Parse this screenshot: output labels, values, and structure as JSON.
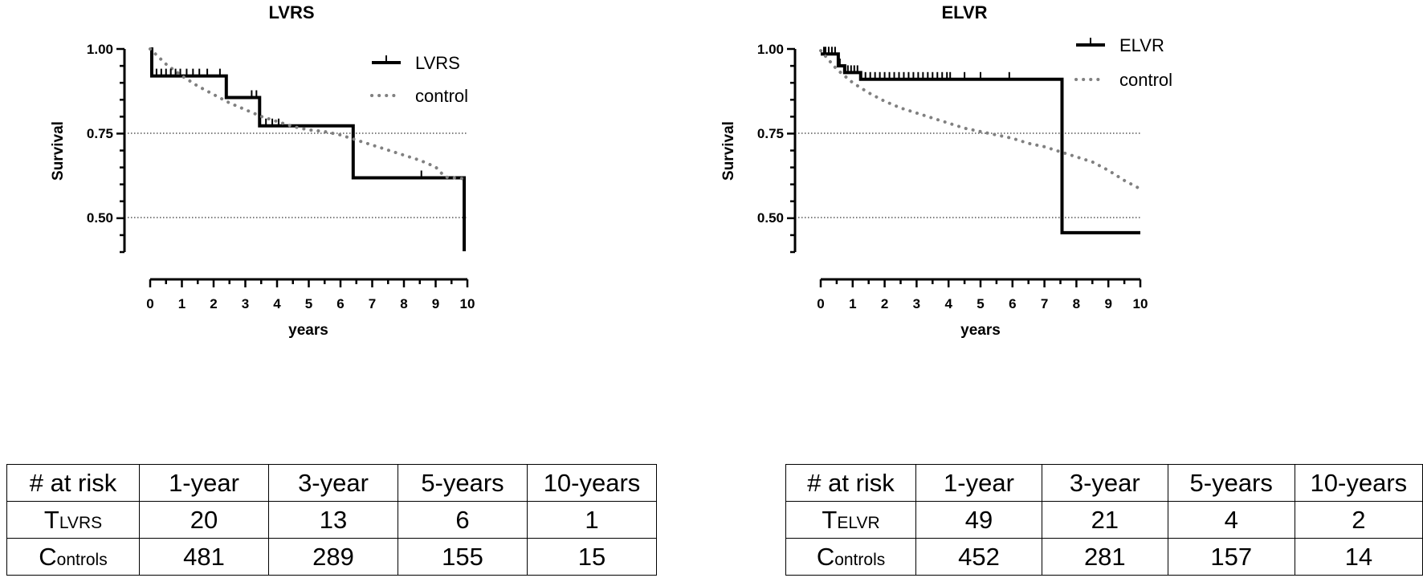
{
  "chart_data": [
    {
      "type": "line",
      "title": "LVRS",
      "xlabel": "years",
      "ylabel": "Survival",
      "xlim": [
        0,
        10
      ],
      "ylim": [
        0.4,
        1.0
      ],
      "xticks": [
        "0",
        "1",
        "2",
        "3",
        "4",
        "5",
        "6",
        "7",
        "8",
        "9",
        "10"
      ],
      "yticks": [
        {
          "value": 1.0,
          "label": "1.00"
        },
        {
          "value": 0.75,
          "label": "0.75"
        },
        {
          "value": 0.5,
          "label": "0.50"
        }
      ],
      "reference_lines": [
        0.75,
        0.5
      ],
      "legend_position": "top-right",
      "series": [
        {
          "name": "LVRS",
          "style": "solid-step",
          "x": [
            0,
            0.05,
            2.4,
            3.45,
            6.4,
            9.9,
            9.9
          ],
          "y": [
            1.0,
            0.92,
            0.856,
            0.772,
            0.618,
            0.618,
            0.4
          ]
        },
        {
          "name": "control",
          "style": "dotted",
          "x": [
            0,
            0.5,
            1,
            1.5,
            2,
            2.5,
            3,
            3.5,
            4,
            4.5,
            5,
            5.5,
            6,
            6.5,
            7,
            7.5,
            8,
            8.5,
            9,
            9.3,
            9.9
          ],
          "y": [
            1.0,
            0.955,
            0.92,
            0.89,
            0.865,
            0.84,
            0.82,
            0.8,
            0.785,
            0.77,
            0.76,
            0.755,
            0.745,
            0.73,
            0.715,
            0.7,
            0.685,
            0.67,
            0.65,
            0.62,
            0.615
          ]
        }
      ],
      "censor_ticks": [
        {
          "series": "LVRS",
          "x": [
            0.2,
            0.35,
            0.5,
            0.65,
            0.8,
            0.95,
            1.15,
            1.35,
            1.55,
            1.8,
            2.2,
            3.2,
            3.35,
            3.65,
            3.85,
            4.05,
            8.55
          ]
        }
      ]
    },
    {
      "type": "line",
      "title": "ELVR",
      "xlabel": "years",
      "ylabel": "Survival",
      "xlim": [
        0,
        10
      ],
      "ylim": [
        0.4,
        1.0
      ],
      "xticks": [
        "0",
        "1",
        "2",
        "3",
        "4",
        "5",
        "6",
        "7",
        "8",
        "9",
        "10"
      ],
      "yticks": [
        {
          "value": 1.0,
          "label": "1.00"
        },
        {
          "value": 0.75,
          "label": "0.75"
        },
        {
          "value": 0.5,
          "label": "0.50"
        }
      ],
      "reference_lines": [
        0.75,
        0.5
      ],
      "legend_position": "top-right",
      "series": [
        {
          "name": "ELVR",
          "style": "solid-step",
          "x": [
            0,
            0.55,
            0.75,
            1.25,
            7.55,
            10
          ],
          "y": [
            0.985,
            0.95,
            0.93,
            0.91,
            0.455,
            0.455
          ]
        },
        {
          "name": "control",
          "style": "dotted",
          "x": [
            0,
            0.5,
            1,
            1.5,
            2,
            2.5,
            3,
            3.5,
            4,
            4.5,
            5,
            5.5,
            6,
            6.5,
            7,
            7.5,
            8,
            8.5,
            9,
            9.5,
            10
          ],
          "y": [
            0.995,
            0.94,
            0.9,
            0.87,
            0.845,
            0.825,
            0.81,
            0.795,
            0.78,
            0.765,
            0.755,
            0.745,
            0.735,
            0.72,
            0.71,
            0.695,
            0.68,
            0.665,
            0.64,
            0.61,
            0.585
          ]
        }
      ],
      "censor_ticks": [
        {
          "series": "ELVR",
          "x": [
            0.1,
            0.15,
            0.25,
            0.35,
            0.45,
            0.6,
            0.85,
            0.95,
            1.05,
            1.15,
            1.4,
            1.55,
            1.7,
            1.85,
            2.0,
            2.15,
            2.3,
            2.45,
            2.6,
            2.75,
            2.9,
            3.05,
            3.2,
            3.35,
            3.5,
            3.65,
            3.8,
            3.95,
            4.05,
            4.5,
            5.0,
            5.9
          ]
        }
      ]
    }
  ],
  "tables": [
    {
      "header": [
        "# at risk",
        "1-year",
        "3-year",
        "5-years",
        "10-years"
      ],
      "rows": [
        {
          "label_main": "T",
          "label_sub": "LVRS",
          "values": [
            "20",
            "13",
            "6",
            "1"
          ]
        },
        {
          "label_main": "C",
          "label_sub": "ontrols",
          "values": [
            "481",
            "289",
            "155",
            "15"
          ]
        }
      ]
    },
    {
      "header": [
        "# at risk",
        "1-year",
        "3-year",
        "5-years",
        "10-years"
      ],
      "rows": [
        {
          "label_main": "T",
          "label_sub": "ELVR",
          "values": [
            "49",
            "21",
            "4",
            "2"
          ]
        },
        {
          "label_main": "C",
          "label_sub": "ontrols",
          "values": [
            "452",
            "281",
            "157",
            "14"
          ]
        }
      ]
    }
  ]
}
